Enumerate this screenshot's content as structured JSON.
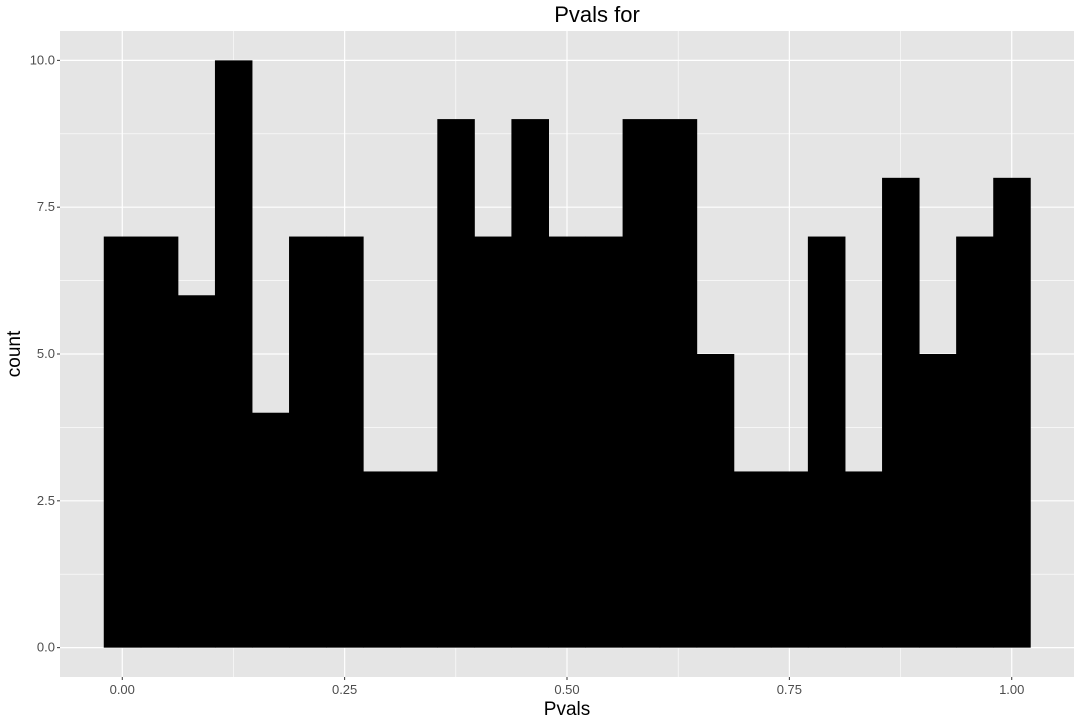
{
  "chart_data": {
    "type": "bar",
    "title": "Pvals for",
    "xlabel": "Pvals",
    "ylabel": "count",
    "x_ticks": [
      "0.00",
      "0.25",
      "0.50",
      "0.75",
      "1.00"
    ],
    "y_ticks": [
      "0.0",
      "2.5",
      "5.0",
      "7.5",
      "10.0"
    ],
    "xlim": [
      -0.07,
      1.07
    ],
    "ylim": [
      -0.5,
      10.5
    ],
    "bins": [
      {
        "x0": -0.0208,
        "x1": 0.0208,
        "count": 7
      },
      {
        "x0": 0.0208,
        "x1": 0.0625,
        "count": 7
      },
      {
        "x0": 0.0625,
        "x1": 0.1042,
        "count": 6
      },
      {
        "x0": 0.1042,
        "x1": 0.1458,
        "count": 10
      },
      {
        "x0": 0.1458,
        "x1": 0.1875,
        "count": 4
      },
      {
        "x0": 0.1875,
        "x1": 0.2292,
        "count": 7
      },
      {
        "x0": 0.2292,
        "x1": 0.2708,
        "count": 7
      },
      {
        "x0": 0.2708,
        "x1": 0.3125,
        "count": 3
      },
      {
        "x0": 0.3125,
        "x1": 0.3542,
        "count": 3
      },
      {
        "x0": 0.3542,
        "x1": 0.3958,
        "count": 9
      },
      {
        "x0": 0.3958,
        "x1": 0.4375,
        "count": 7
      },
      {
        "x0": 0.4375,
        "x1": 0.4792,
        "count": 9
      },
      {
        "x0": 0.4792,
        "x1": 0.5208,
        "count": 7
      },
      {
        "x0": 0.5208,
        "x1": 0.5625,
        "count": 7
      },
      {
        "x0": 0.5625,
        "x1": 0.6042,
        "count": 9
      },
      {
        "x0": 0.6042,
        "x1": 0.6458,
        "count": 9
      },
      {
        "x0": 0.6458,
        "x1": 0.6875,
        "count": 5
      },
      {
        "x0": 0.6875,
        "x1": 0.7292,
        "count": 3
      },
      {
        "x0": 0.7292,
        "x1": 0.7708,
        "count": 3
      },
      {
        "x0": 0.7708,
        "x1": 0.8125,
        "count": 7
      },
      {
        "x0": 0.8125,
        "x1": 0.8542,
        "count": 3
      },
      {
        "x0": 0.8542,
        "x1": 0.8958,
        "count": 8
      },
      {
        "x0": 0.8958,
        "x1": 0.9375,
        "count": 5
      },
      {
        "x0": 0.9375,
        "x1": 0.9792,
        "count": 7
      },
      {
        "x0": 0.9792,
        "x1": 1.0208,
        "count": 8
      }
    ],
    "grid": true,
    "legend": "none",
    "colors": {
      "bar_fill": "#000000",
      "panel_background": "#e5e5e5",
      "grid_line": "#ffffff"
    }
  }
}
